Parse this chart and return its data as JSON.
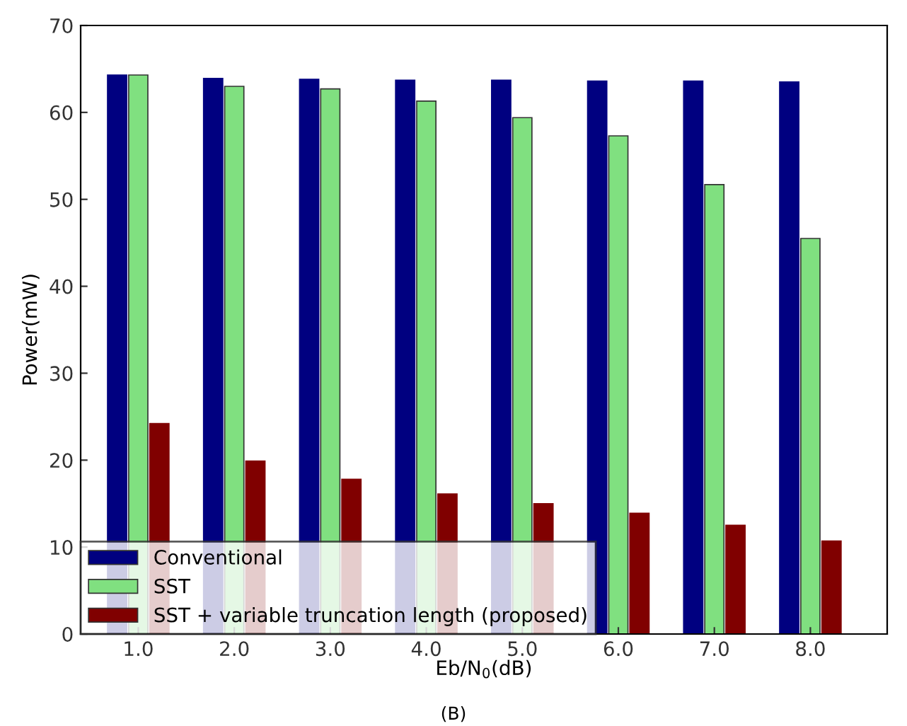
{
  "chart_data": {
    "type": "bar",
    "xlabel": "Eb/N$_{0}$(dB)",
    "ylabel": "Power(mW)",
    "annotations": [
      "(B)"
    ],
    "categories": [
      "1.0",
      "2.0",
      "3.0",
      "4.0",
      "5.0",
      "6.0",
      "7.0",
      "8.0"
    ],
    "series": [
      {
        "name": "Conventional",
        "color": "#000080",
        "values": [
          64.3,
          63.9,
          63.8,
          63.7,
          63.7,
          63.6,
          63.6,
          63.5
        ]
      },
      {
        "name": "SST",
        "color": "#80e080",
        "values": [
          64.3,
          63.0,
          62.7,
          61.3,
          59.4,
          57.3,
          51.7,
          45.5
        ]
      },
      {
        "name": "SST + variable truncation length (proposed)",
        "color": "#800000",
        "values": [
          24.2,
          19.9,
          17.8,
          16.1,
          15.0,
          13.9,
          12.5,
          10.7
        ]
      }
    ],
    "ylim": [
      0,
      70
    ],
    "yticks": [
      0,
      10,
      20,
      30,
      40,
      50,
      60,
      70
    ],
    "grid": false,
    "legend": "bottom left"
  }
}
